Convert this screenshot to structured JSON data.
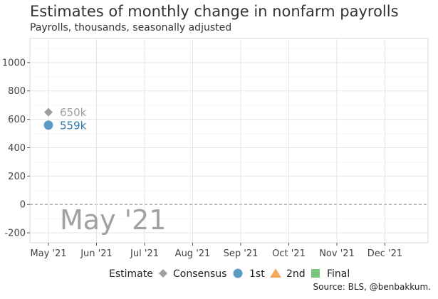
{
  "title": "Estimates of monthly change in nonfarm payrolls",
  "subtitle": "Payrolls, thousands, seasonally adjusted",
  "source": "Source: BLS, @benbakkum.",
  "colors": {
    "consensus": "#9e9e9e",
    "first": "#5b9cc6",
    "second": "#f4a95b",
    "final": "#77c77a",
    "first_label": "#2e79ad",
    "watermark": "#a0a0a0"
  },
  "chart_data": {
    "type": "scatter",
    "title": "Estimates of monthly change in nonfarm payrolls",
    "subtitle": "Payrolls, thousands, seasonally adjusted",
    "xlabel": "",
    "ylabel": "",
    "categories": [
      "May '21",
      "Jun '21",
      "Jul '21",
      "Aug '21",
      "Sep '21",
      "Oct '21",
      "Nov '21",
      "Dec '21"
    ],
    "ylim": [
      -270,
      1170
    ],
    "yticks": [
      -200,
      0,
      200,
      400,
      600,
      800,
      1000
    ],
    "grid": true,
    "zero_line": "dashed",
    "watermark": "May '21",
    "series": [
      {
        "name": "Consensus",
        "marker": "diamond",
        "color": "#9e9e9e",
        "points": [
          {
            "x": "May '21",
            "y": 650,
            "label": "650k"
          }
        ]
      },
      {
        "name": "1st",
        "marker": "circle",
        "color": "#5b9cc6",
        "points": [
          {
            "x": "May '21",
            "y": 559,
            "label": "559k"
          }
        ]
      },
      {
        "name": "2nd",
        "marker": "triangle",
        "color": "#f4a95b",
        "points": []
      },
      {
        "name": "Final",
        "marker": "square",
        "color": "#77c77a",
        "points": []
      }
    ],
    "legend": {
      "title": "Estimate",
      "placement": "bottom"
    }
  }
}
